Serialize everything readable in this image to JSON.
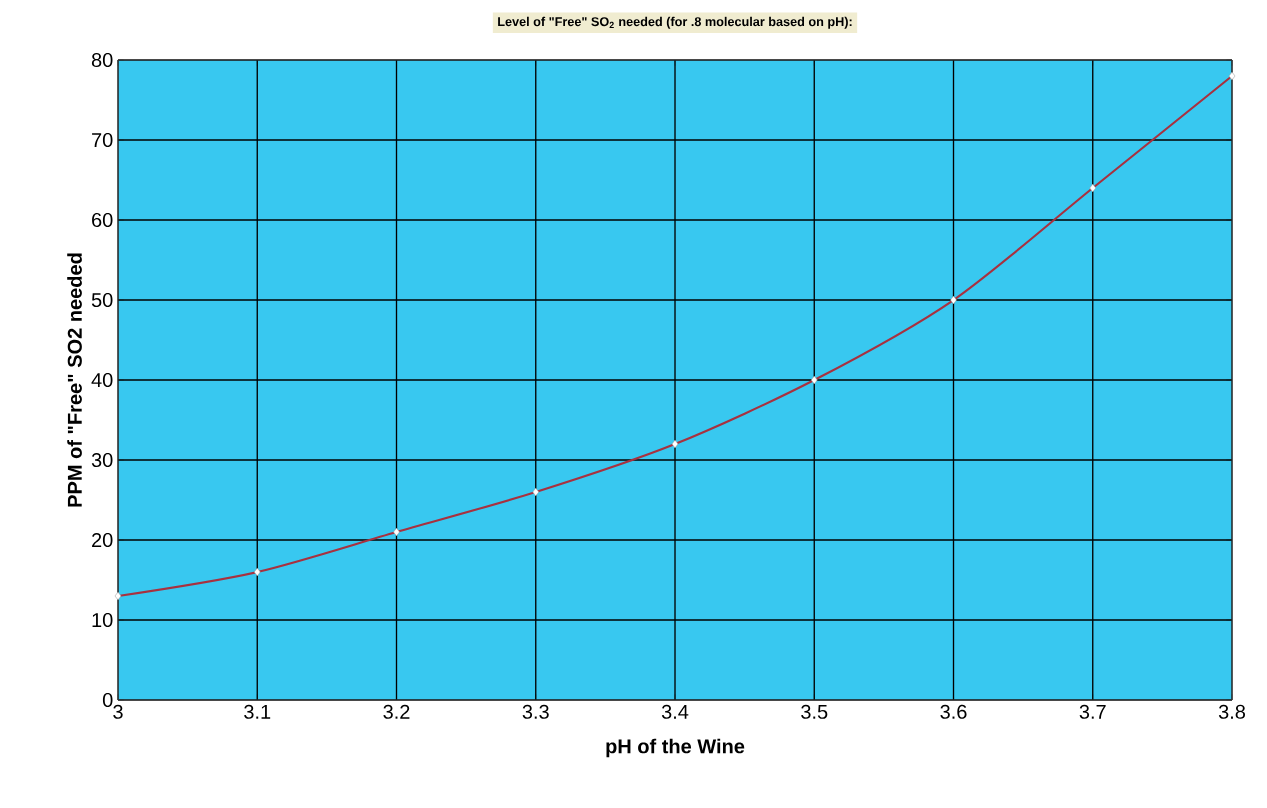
{
  "chart_data": {
    "type": "line",
    "title": "Level of \"Free\" SO$_{2}$ needed (for .8 molecular based on pH):",
    "xlabel": "pH of the Wine",
    "ylabel": "PPM of \"Free\" SO2 needed",
    "x": [
      3,
      3.1,
      3.2,
      3.3,
      3.4,
      3.5,
      3.6,
      3.7,
      3.8
    ],
    "series": [
      {
        "color": "#a8313f",
        "values": [
          13,
          16,
          21,
          26,
          32,
          40,
          50,
          64,
          78
        ]
      }
    ],
    "xlim": [
      3,
      3.8
    ],
    "xticks": [
      3,
      3.1,
      3.2,
      3.3,
      3.4,
      3.5,
      3.6,
      3.7,
      3.8
    ],
    "ylim": [
      0,
      80
    ],
    "yticks": [
      0,
      10,
      20,
      30,
      40,
      50,
      60,
      70,
      80
    ],
    "grid": true,
    "marker": "diamond",
    "line_style": "solid"
  }
}
